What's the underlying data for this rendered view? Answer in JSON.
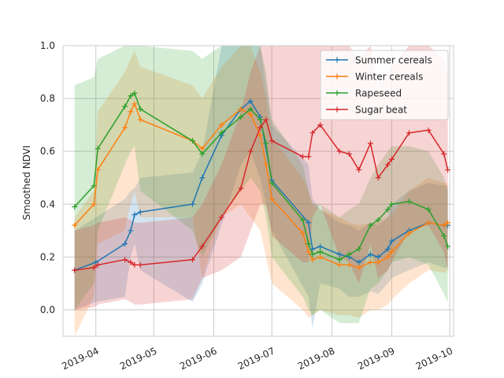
{
  "chart_data": {
    "type": "line",
    "title": "",
    "xlabel": "",
    "ylabel": "Smoothed NDVI",
    "xlim": [
      "2019-03-15",
      "2019-10-03"
    ],
    "ylim": [
      -0.1,
      1.0
    ],
    "yticks": [
      0.0,
      0.2,
      0.4,
      0.6,
      0.8,
      1.0
    ],
    "ytick_labels": [
      "0.0",
      "0.2",
      "0.4",
      "0.6",
      "0.8",
      "1.0"
    ],
    "xticks": [
      "2019-04-01",
      "2019-05-01",
      "2019-06-01",
      "2019-07-01",
      "2019-08-01",
      "2019-09-01",
      "2019-10-01"
    ],
    "xtick_labels": [
      "2019-04",
      "2019-05",
      "2019-06",
      "2019-07",
      "2019-08",
      "2019-09",
      "2019-10"
    ],
    "grid": true,
    "legend_position": "top-right",
    "series": [
      {
        "name": "Summer cereals",
        "color": "#1f77b4",
        "dates": [
          "2019-03-21",
          "2019-04-01",
          "2019-04-16",
          "2019-04-19",
          "2019-04-21",
          "2019-04-24",
          "2019-05-21",
          "2019-05-26",
          "2019-06-05",
          "2019-06-15",
          "2019-06-20",
          "2019-06-25",
          "2019-07-01",
          "2019-07-20",
          "2019-07-22",
          "2019-07-26",
          "2019-08-05",
          "2019-08-10",
          "2019-08-15",
          "2019-08-21",
          "2019-08-25",
          "2019-08-30",
          "2019-09-01",
          "2019-09-10",
          "2019-09-20",
          "2019-09-28",
          "2019-09-30"
        ],
        "values": [
          0.15,
          0.18,
          0.25,
          0.3,
          0.36,
          0.37,
          0.4,
          0.5,
          0.66,
          0.76,
          0.79,
          0.73,
          0.49,
          0.33,
          0.23,
          0.24,
          0.21,
          0.2,
          0.18,
          0.21,
          0.2,
          0.23,
          0.26,
          0.3,
          0.33,
          0.32,
          0.32
        ],
        "upper": [
          0.3,
          0.35,
          0.42,
          0.45,
          0.46,
          0.5,
          0.52,
          0.6,
          1.0,
          1.0,
          1.0,
          1.0,
          0.7,
          0.55,
          0.42,
          0.38,
          0.33,
          0.32,
          0.3,
          0.33,
          0.32,
          0.35,
          0.4,
          0.45,
          0.48,
          0.47,
          0.47
        ],
        "lower": [
          0.0,
          0.03,
          0.05,
          0.2,
          0.25,
          0.15,
          0.03,
          0.1,
          0.32,
          0.55,
          0.6,
          0.5,
          0.3,
          0.05,
          -0.07,
          0.1,
          0.08,
          0.05,
          0.05,
          0.07,
          0.06,
          0.1,
          0.12,
          0.15,
          0.18,
          0.16,
          0.16
        ]
      },
      {
        "name": "Winter cereals",
        "color": "#ff7f0e",
        "dates": [
          "2019-03-21",
          "2019-03-31",
          "2019-04-02",
          "2019-04-16",
          "2019-04-19",
          "2019-04-21",
          "2019-04-24",
          "2019-05-21",
          "2019-05-26",
          "2019-06-05",
          "2019-06-15",
          "2019-06-20",
          "2019-06-25",
          "2019-06-28",
          "2019-07-01",
          "2019-07-17",
          "2019-07-20",
          "2019-07-22",
          "2019-07-26",
          "2019-08-05",
          "2019-08-10",
          "2019-08-15",
          "2019-08-21",
          "2019-08-25",
          "2019-08-30",
          "2019-09-01",
          "2019-09-10",
          "2019-09-20",
          "2019-09-28",
          "2019-09-30"
        ],
        "values": [
          0.32,
          0.4,
          0.53,
          0.69,
          0.75,
          0.78,
          0.72,
          0.64,
          0.61,
          0.7,
          0.76,
          0.74,
          0.66,
          0.55,
          0.42,
          0.29,
          0.22,
          0.19,
          0.2,
          0.17,
          0.17,
          0.16,
          0.18,
          0.18,
          0.2,
          0.22,
          0.29,
          0.33,
          0.32,
          0.33
        ],
        "upper": [
          0.35,
          0.45,
          0.75,
          0.9,
          0.95,
          0.98,
          0.92,
          0.85,
          0.8,
          0.92,
          1.0,
          1.0,
          0.9,
          0.8,
          0.65,
          0.5,
          0.45,
          0.4,
          0.38,
          0.35,
          0.33,
          0.32,
          0.33,
          0.33,
          0.35,
          0.36,
          0.45,
          0.5,
          0.48,
          0.48
        ],
        "lower": [
          -0.1,
          0.05,
          0.25,
          0.3,
          0.4,
          0.45,
          0.35,
          0.35,
          0.12,
          0.35,
          0.4,
          0.35,
          0.3,
          0.2,
          0.1,
          0.0,
          -0.03,
          -0.02,
          0.0,
          -0.02,
          -0.02,
          -0.03,
          0.0,
          0.0,
          0.02,
          0.04,
          0.1,
          0.15,
          0.14,
          0.15
        ]
      },
      {
        "name": "Rapeseed",
        "color": "#2ca02c",
        "dates": [
          "2019-03-21",
          "2019-03-31",
          "2019-04-02",
          "2019-04-16",
          "2019-04-19",
          "2019-04-21",
          "2019-04-24",
          "2019-05-21",
          "2019-05-26",
          "2019-06-05",
          "2019-06-15",
          "2019-06-20",
          "2019-06-25",
          "2019-06-28",
          "2019-07-01",
          "2019-07-17",
          "2019-07-20",
          "2019-07-22",
          "2019-07-26",
          "2019-08-05",
          "2019-08-10",
          "2019-08-15",
          "2019-08-21",
          "2019-08-25",
          "2019-08-30",
          "2019-09-01",
          "2019-09-10",
          "2019-09-20",
          "2019-09-28",
          "2019-09-30"
        ],
        "values": [
          0.39,
          0.47,
          0.61,
          0.77,
          0.81,
          0.82,
          0.76,
          0.64,
          0.59,
          0.67,
          0.73,
          0.76,
          0.72,
          0.63,
          0.48,
          0.34,
          0.25,
          0.21,
          0.22,
          0.19,
          0.21,
          0.23,
          0.32,
          0.34,
          0.38,
          0.4,
          0.41,
          0.38,
          0.28,
          0.24
        ],
        "upper": [
          0.85,
          0.88,
          0.95,
          1.0,
          1.0,
          1.0,
          1.0,
          0.98,
          0.95,
          1.0,
          1.0,
          1.0,
          1.0,
          0.9,
          0.72,
          0.55,
          0.45,
          0.4,
          0.4,
          0.35,
          0.38,
          0.4,
          0.5,
          0.55,
          0.6,
          0.62,
          0.62,
          0.6,
          0.5,
          0.45
        ],
        "lower": [
          0.0,
          0.1,
          0.3,
          0.55,
          0.6,
          0.62,
          0.45,
          0.3,
          0.2,
          0.35,
          0.45,
          0.5,
          0.45,
          0.35,
          0.2,
          0.05,
          0.0,
          -0.02,
          0.0,
          -0.05,
          -0.05,
          -0.05,
          0.08,
          0.1,
          0.15,
          0.18,
          0.2,
          0.17,
          0.06,
          0.03
        ]
      },
      {
        "name": "Sugar beat",
        "color": "#d62728",
        "dates": [
          "2019-03-21",
          "2019-03-31",
          "2019-04-02",
          "2019-04-16",
          "2019-04-19",
          "2019-04-21",
          "2019-04-24",
          "2019-05-21",
          "2019-05-26",
          "2019-06-05",
          "2019-06-15",
          "2019-06-20",
          "2019-06-25",
          "2019-06-28",
          "2019-07-01",
          "2019-07-17",
          "2019-07-20",
          "2019-07-22",
          "2019-07-26",
          "2019-08-05",
          "2019-08-10",
          "2019-08-15",
          "2019-08-21",
          "2019-08-25",
          "2019-08-30",
          "2019-09-01",
          "2019-09-10",
          "2019-09-20",
          "2019-09-28",
          "2019-09-30"
        ],
        "values": [
          0.15,
          0.16,
          0.17,
          0.19,
          0.18,
          0.17,
          0.17,
          0.19,
          0.24,
          0.35,
          0.46,
          0.6,
          0.69,
          0.72,
          0.64,
          0.58,
          0.58,
          0.67,
          0.7,
          0.6,
          0.59,
          0.53,
          0.63,
          0.5,
          0.55,
          0.57,
          0.67,
          0.68,
          0.59,
          0.53
        ],
        "upper": [
          0.3,
          0.32,
          0.33,
          0.35,
          0.34,
          0.33,
          0.33,
          0.35,
          0.4,
          0.55,
          0.75,
          0.9,
          1.0,
          1.0,
          1.0,
          1.0,
          1.0,
          1.0,
          1.0,
          1.0,
          1.0,
          0.95,
          1.0,
          0.85,
          0.9,
          0.92,
          1.0,
          1.0,
          0.95,
          0.9
        ],
        "lower": [
          0.0,
          0.01,
          0.02,
          0.04,
          0.03,
          0.02,
          0.02,
          0.04,
          0.12,
          0.15,
          0.2,
          0.3,
          0.4,
          0.4,
          0.28,
          0.18,
          0.18,
          0.35,
          0.4,
          0.2,
          0.18,
          0.1,
          0.25,
          0.12,
          0.15,
          0.18,
          0.3,
          0.32,
          0.22,
          0.15
        ]
      }
    ]
  }
}
